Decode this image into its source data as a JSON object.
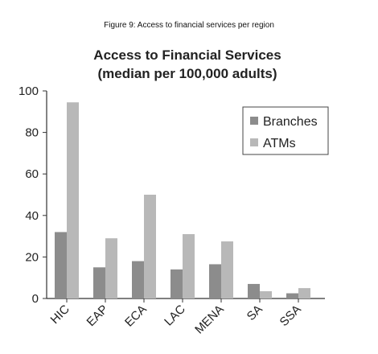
{
  "figure_caption": "Figure 9: Access to financial services per region",
  "chart_data": {
    "type": "bar",
    "title": "Access to Financial Services",
    "subtitle": "(median per 100,000 adults)",
    "categories": [
      "HIC",
      "EAP",
      "ECA",
      "LAC",
      "MENA",
      "SA",
      "SSA"
    ],
    "series": [
      {
        "name": "Branches",
        "color": "#8c8c8c",
        "values": [
          32,
          15,
          18,
          14,
          16.5,
          7,
          2.5
        ]
      },
      {
        "name": "ATMs",
        "color": "#b8b8b8",
        "values": [
          94.5,
          29,
          50,
          31,
          27.5,
          3.5,
          5
        ]
      }
    ],
    "yticks": [
      "0",
      "20",
      "40",
      "60",
      "80",
      "100"
    ],
    "ylim": [
      0,
      100
    ],
    "xlabel": "",
    "ylabel": "",
    "grid": false,
    "legend": "top-right"
  }
}
